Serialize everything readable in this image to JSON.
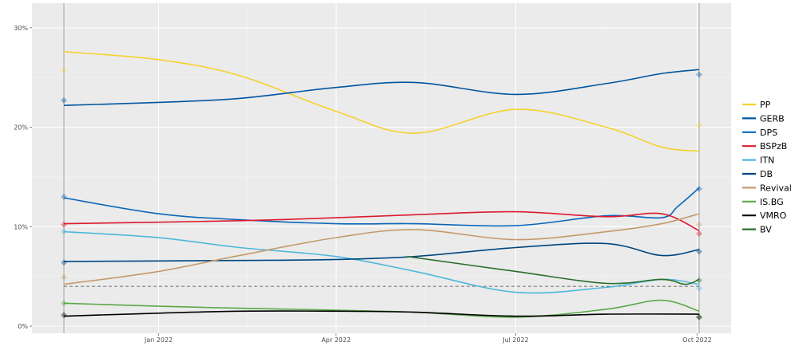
{
  "chart_data": {
    "type": "line",
    "title": "",
    "xlabel": "",
    "ylabel": "",
    "ylim": [
      0,
      31
    ],
    "xlim": [
      "2021-11-01",
      "2022-10-12"
    ],
    "yticks": [
      "0%",
      "10%",
      "20%",
      "30%"
    ],
    "xticks": [
      {
        "date": "2022-01-01",
        "label": "Jan 2022"
      },
      {
        "date": "2022-04-01",
        "label": "Apr 2022"
      },
      {
        "date": "2022-07-01",
        "label": "Jul 2022"
      },
      {
        "date": "2022-10-01",
        "label": "Oct 2022"
      }
    ],
    "grid": true,
    "legend": "right",
    "threshold": 4,
    "elections": [
      "2021-11-14",
      "2022-10-02"
    ],
    "series": [
      {
        "name": "PP",
        "color": "#f5d22f",
        "x": [
          "2021-11-14",
          "2022-01-01",
          "2022-02-11",
          "2022-04-01",
          "2022-05-11",
          "2022-07-01",
          "2022-08-16",
          "2022-09-13",
          "2022-10-02"
        ],
        "values": [
          27.6,
          26.8,
          25.2,
          21.6,
          19.4,
          21.8,
          20.0,
          18.0,
          17.6
        ],
        "results": [
          25.7,
          20.2
        ]
      },
      {
        "name": "GERB",
        "color": "#0055a0",
        "x": [
          "2021-11-14",
          "2022-01-01",
          "2022-02-11",
          "2022-04-01",
          "2022-05-11",
          "2022-07-01",
          "2022-08-16",
          "2022-09-13",
          "2022-10-02"
        ],
        "values": [
          22.2,
          22.5,
          22.9,
          24.0,
          24.5,
          23.3,
          24.4,
          25.4,
          25.8
        ],
        "results": [
          22.7,
          25.3
        ]
      },
      {
        "name": "DPS",
        "color": "#0a66b8",
        "x": [
          "2021-11-14",
          "2022-01-01",
          "2022-02-11",
          "2022-04-01",
          "2022-05-11",
          "2022-07-01",
          "2022-08-16",
          "2022-09-13",
          "2022-09-21",
          "2022-10-02"
        ],
        "values": [
          12.9,
          11.3,
          10.7,
          10.3,
          10.3,
          10.1,
          11.1,
          10.9,
          12.0,
          13.9
        ],
        "results": [
          13.0,
          13.8
        ]
      },
      {
        "name": "BSPzB",
        "color": "#db1a30",
        "x": [
          "2021-11-14",
          "2022-02-11",
          "2022-04-01",
          "2022-05-11",
          "2022-07-01",
          "2022-08-16",
          "2022-09-13",
          "2022-10-02"
        ],
        "values": [
          10.3,
          10.6,
          10.9,
          11.2,
          11.5,
          11.0,
          11.3,
          9.6
        ],
        "results": [
          10.2,
          9.3
        ]
      },
      {
        "name": "ITN",
        "color": "#4db8dc",
        "x": [
          "2021-11-14",
          "2022-01-01",
          "2022-02-11",
          "2022-04-01",
          "2022-05-11",
          "2022-07-01",
          "2022-08-16",
          "2022-09-13",
          "2022-10-02"
        ],
        "values": [
          9.5,
          8.9,
          7.9,
          7.0,
          5.5,
          3.4,
          3.9,
          4.7,
          4.2
        ],
        "results": [
          9.5,
          3.8
        ]
      },
      {
        "name": "DB",
        "color": "#00467f",
        "x": [
          "2021-11-14",
          "2022-02-11",
          "2022-04-01",
          "2022-05-11",
          "2022-07-01",
          "2022-08-16",
          "2022-09-13",
          "2022-10-02"
        ],
        "values": [
          6.5,
          6.6,
          6.7,
          7.0,
          7.9,
          8.3,
          7.1,
          7.7
        ],
        "results": [
          6.4,
          7.5
        ]
      },
      {
        "name": "Revival",
        "color": "#c49a6c",
        "x": [
          "2021-11-14",
          "2022-01-01",
          "2022-02-11",
          "2022-04-01",
          "2022-05-11",
          "2022-07-01",
          "2022-08-16",
          "2022-09-13",
          "2022-10-02"
        ],
        "values": [
          4.2,
          5.5,
          7.1,
          8.9,
          9.7,
          8.7,
          9.5,
          10.3,
          11.3
        ],
        "results": [
          4.9,
          10.2
        ]
      },
      {
        "name": "IS.BG",
        "color": "#5aa845",
        "x": [
          "2021-11-14",
          "2022-01-01",
          "2022-02-11",
          "2022-04-01",
          "2022-05-11",
          "2022-07-01",
          "2022-08-16",
          "2022-09-13",
          "2022-10-02"
        ],
        "values": [
          2.3,
          2.0,
          1.8,
          1.6,
          1.4,
          0.9,
          1.7,
          2.6,
          1.5
        ],
        "results": [
          2.3,
          0.9
        ]
      },
      {
        "name": "VMRO",
        "color": "#000000",
        "x": [
          "2021-11-14",
          "2022-01-01",
          "2022-02-11",
          "2022-04-01",
          "2022-05-11",
          "2022-07-01",
          "2022-08-16",
          "2022-10-02"
        ],
        "values": [
          1.0,
          1.3,
          1.5,
          1.5,
          1.4,
          1.0,
          1.2,
          1.2
        ],
        "results": [
          1.1,
          0.9
        ]
      },
      {
        "name": "BV",
        "color": "#2b6e2b",
        "x": [
          "2022-05-07",
          "2022-07-01",
          "2022-08-16",
          "2022-09-13",
          "2022-09-25",
          "2022-10-02"
        ],
        "values": [
          7.0,
          5.5,
          4.3,
          4.7,
          4.2,
          4.7
        ],
        "results": [
          null,
          4.6
        ]
      }
    ]
  }
}
